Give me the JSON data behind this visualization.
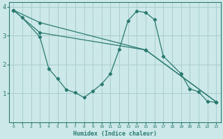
{
  "xlabel": "Humidex (Indice chaleur)",
  "background_color": "#cce8e8",
  "grid_color": "#aacece",
  "line_color": "#2a7a70",
  "xlim": [
    -0.5,
    23.5
  ],
  "ylim": [
    0,
    4.15
  ],
  "yticks": [
    1,
    2,
    3,
    4
  ],
  "xticks": [
    0,
    1,
    2,
    3,
    4,
    5,
    6,
    7,
    8,
    9,
    10,
    11,
    12,
    13,
    14,
    15,
    16,
    17,
    18,
    19,
    20,
    21,
    22,
    23
  ],
  "line1_x": [
    0,
    1,
    3,
    4,
    5,
    6,
    7,
    8,
    9,
    10,
    11,
    12,
    13,
    14,
    15,
    16,
    17,
    19,
    20,
    21,
    22,
    23
  ],
  "line1_y": [
    3.88,
    3.62,
    2.95,
    1.85,
    1.5,
    1.12,
    1.02,
    0.85,
    1.07,
    1.32,
    1.67,
    2.52,
    3.52,
    3.85,
    3.8,
    3.55,
    2.28,
    1.68,
    1.15,
    1.05,
    0.72,
    0.68
  ],
  "line2_x": [
    0,
    3,
    15,
    23
  ],
  "line2_y": [
    3.88,
    3.45,
    2.5,
    0.7
  ],
  "line3_x": [
    0,
    3,
    15,
    23
  ],
  "line3_y": [
    3.88,
    3.1,
    2.5,
    0.7
  ]
}
